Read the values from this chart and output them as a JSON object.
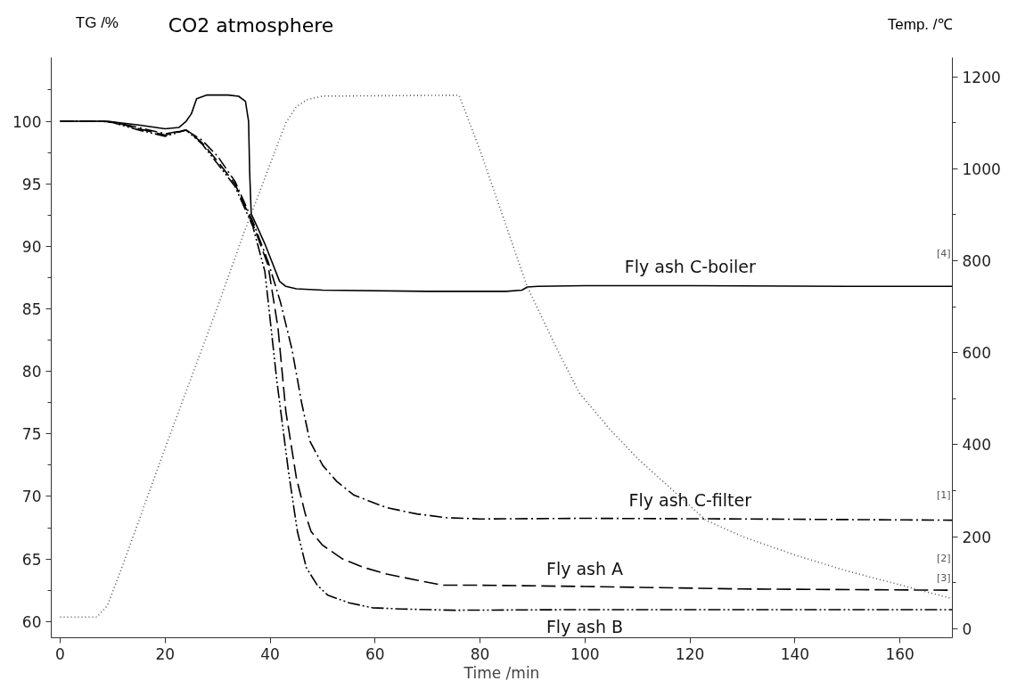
{
  "chart_data": {
    "type": "line",
    "title": "CO2 atmosphere",
    "xlabel": "Time /min",
    "ylabel": "TG /%",
    "y2label": "Temp. /℃",
    "xlim": [
      -1.7,
      170
    ],
    "xticks": [
      0,
      20,
      40,
      60,
      80,
      100,
      120,
      140,
      160
    ],
    "ylim": [
      58.7,
      105.1
    ],
    "yticks": [
      60,
      {
        "value": 62.5,
        "label": null
      },
      65,
      {
        "value": 67.5,
        "label": null
      },
      70,
      {
        "value": 72.5,
        "label": null
      },
      75,
      {
        "value": 77.5,
        "label": null
      },
      80,
      {
        "value": 82.5,
        "label": null
      },
      85,
      {
        "value": 87.5,
        "label": null
      },
      90,
      {
        "value": 92.5,
        "label": null
      },
      95,
      {
        "value": 97.5,
        "label": null
      },
      100,
      {
        "value": 102.5,
        "label": null
      }
    ],
    "y2lim": [
      -20,
      1242
    ],
    "y2ticks": [
      0,
      {
        "value": 100,
        "label": null
      },
      200,
      {
        "value": 300,
        "label": null
      },
      400,
      {
        "value": 500,
        "label": null
      },
      600,
      {
        "value": 700,
        "label": null
      },
      800,
      {
        "value": 900,
        "label": null
      },
      1000,
      {
        "value": 1100,
        "label": null
      },
      1200
    ],
    "grid": false,
    "marker": "none",
    "series": [
      {
        "color": "#000000",
        "line_style": "solid",
        "x": [
          0,
          8,
          10,
          15,
          20,
          22.6,
          24,
          25,
          26,
          28,
          32,
          34,
          35.3,
          35.9,
          36.1,
          36.4,
          37.5,
          39,
          40.5,
          41.8,
          43,
          45,
          50,
          70,
          85,
          88,
          89,
          91,
          100,
          120,
          150,
          170
        ],
        "values": [
          100,
          100,
          99.95,
          99.7,
          99.4,
          99.5,
          100,
          100.6,
          101.8,
          102.1,
          102.1,
          102.0,
          101.6,
          100,
          96,
          92.6,
          91.6,
          90.2,
          88.6,
          87.2,
          86.8,
          86.6,
          86.5,
          86.4,
          86.4,
          86.5,
          86.75,
          86.8,
          86.85,
          86.85,
          86.8,
          86.8
        ]
      },
      {
        "color": "#000000",
        "line_style": "dashdot",
        "x": [
          0,
          8,
          10,
          15,
          20,
          24,
          27,
          30,
          33.3,
          36.7,
          39.6,
          42,
          44.2,
          46,
          47.6,
          50,
          52.7,
          56,
          62.2,
          68,
          73.6,
          80,
          100,
          130,
          170
        ],
        "values": [
          100,
          100,
          99.95,
          99.5,
          99.0,
          99.3,
          98.5,
          97.2,
          95.2,
          92,
          88.8,
          85.5,
          81.7,
          77.5,
          74.4,
          72.5,
          71.2,
          70.1,
          69.1,
          68.6,
          68.3,
          68.2,
          68.25,
          68.2,
          68.1
        ]
      },
      {
        "color": "#000000",
        "line_style": "dashed",
        "x": [
          0,
          8,
          10,
          15,
          20,
          24,
          27,
          30,
          33.3,
          36.7,
          39.6,
          41.5,
          43,
          45,
          46.7,
          47.8,
          50,
          53.8,
          58,
          62.2,
          68,
          73,
          80,
          100,
          130,
          170
        ],
        "values": [
          100,
          100,
          99.95,
          99.4,
          98.9,
          99.3,
          98.3,
          96.8,
          95,
          91.8,
          88.5,
          83.5,
          76.8,
          71.5,
          68.6,
          67.2,
          66.1,
          65,
          64.3,
          63.8,
          63.3,
          62.9,
          62.9,
          62.8,
          62.6,
          62.5
        ]
      },
      {
        "color": "#000000",
        "line_style": "dashdotdot",
        "x": [
          0,
          8,
          10,
          15,
          20,
          24,
          27,
          30,
          33.3,
          36.7,
          39,
          41.3,
          43.5,
          45.2,
          46.9,
          49,
          51,
          55,
          59.5,
          65,
          75,
          100,
          130,
          170
        ],
        "values": [
          100,
          100,
          99.9,
          99.3,
          98.8,
          99.3,
          98.2,
          96.6,
          94.8,
          91.6,
          88,
          79.2,
          72,
          67.2,
          64.3,
          62.9,
          62.1,
          61.5,
          61.1,
          61.0,
          60.9,
          60.95,
          60.95,
          60.95
        ]
      },
      {
        "color": "#555555",
        "line_style": "dotted",
        "axis": "y2",
        "x": [
          0,
          7,
          9,
          12,
          20,
          30,
          35,
          40,
          43,
          45,
          47,
          50,
          76,
          80,
          89,
          95,
          99,
          105,
          110,
          123,
          130,
          140,
          150,
          160,
          170
        ],
        "values": [
          25,
          25,
          50,
          140,
          393,
          700,
          860,
          1010,
          1100,
          1135,
          1150,
          1158,
          1160,
          1040,
          743,
          600,
          511,
          430,
          370,
          236,
          200,
          160,
          125,
          95,
          65
        ]
      }
    ],
    "annotations": [
      "Fly ash C-boiler",
      "Fly ash C-filter",
      "Fly ash A",
      "Fly ash B",
      "[4]",
      "[1]",
      "[3]",
      "[2]"
    ]
  }
}
